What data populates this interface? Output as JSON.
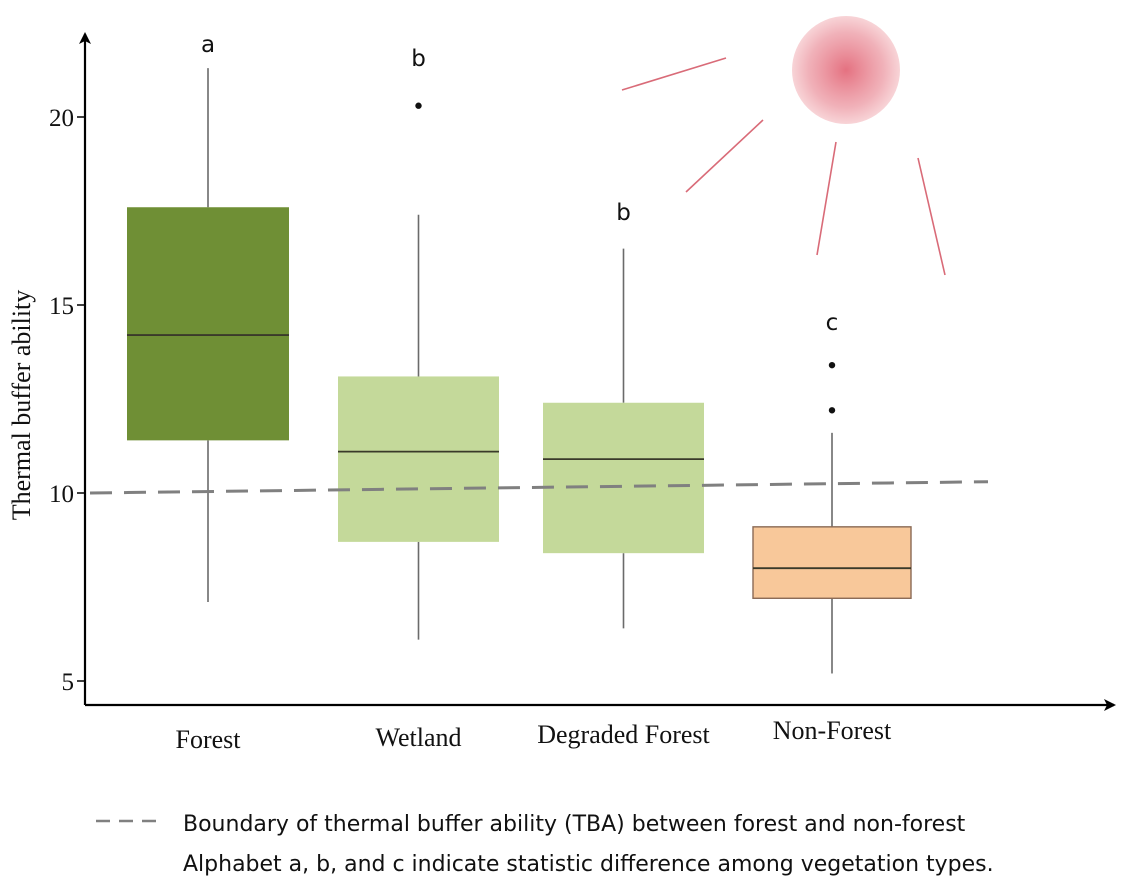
{
  "chart_data": {
    "type": "box",
    "ylabel": "Thermal buffer ability",
    "xlabel": "",
    "ylim": [
      4.5,
      22.5
    ],
    "yticks": [
      5,
      10,
      15,
      20
    ],
    "grid": false,
    "categories": [
      "Forest",
      "Wetland",
      "Degraded Forest",
      "Non-Forest"
    ],
    "boxes": [
      {
        "category": "Forest",
        "whisker_low": 7.1,
        "q1": 11.4,
        "median": 14.2,
        "q3": 17.6,
        "whisker_high": 21.3,
        "outliers": [],
        "letter": "a",
        "color": "#6f8f35"
      },
      {
        "category": "Wetland",
        "whisker_low": 6.1,
        "q1": 8.7,
        "median": 11.1,
        "q3": 13.1,
        "whisker_high": 17.4,
        "outliers": [
          20.3
        ],
        "letter": "b",
        "color": "#c4d99a"
      },
      {
        "category": "Degraded Forest",
        "whisker_low": 6.4,
        "q1": 8.4,
        "median": 10.9,
        "q3": 12.4,
        "whisker_high": 16.5,
        "outliers": [],
        "letter": "b",
        "color": "#c4d99a"
      },
      {
        "category": "Non-Forest",
        "whisker_low": 5.2,
        "q1": 7.2,
        "median": 8.0,
        "q3": 9.1,
        "whisker_high": 11.6,
        "outliers": [
          12.2,
          13.4
        ],
        "letter": "c",
        "color": "#f8c89a"
      }
    ],
    "boundary_line": {
      "y_start": 10.0,
      "y_end": 10.3,
      "style": "dashed",
      "color": "#808080"
    },
    "legend": {
      "placement": "bottom",
      "boundary_label": "Boundary of thermal buffer ability (TBA) between forest and non-forest",
      "note": "Alphabet a, b, and c indicate statistic difference among vegetation types."
    },
    "sun_color": "#e36a7a"
  }
}
